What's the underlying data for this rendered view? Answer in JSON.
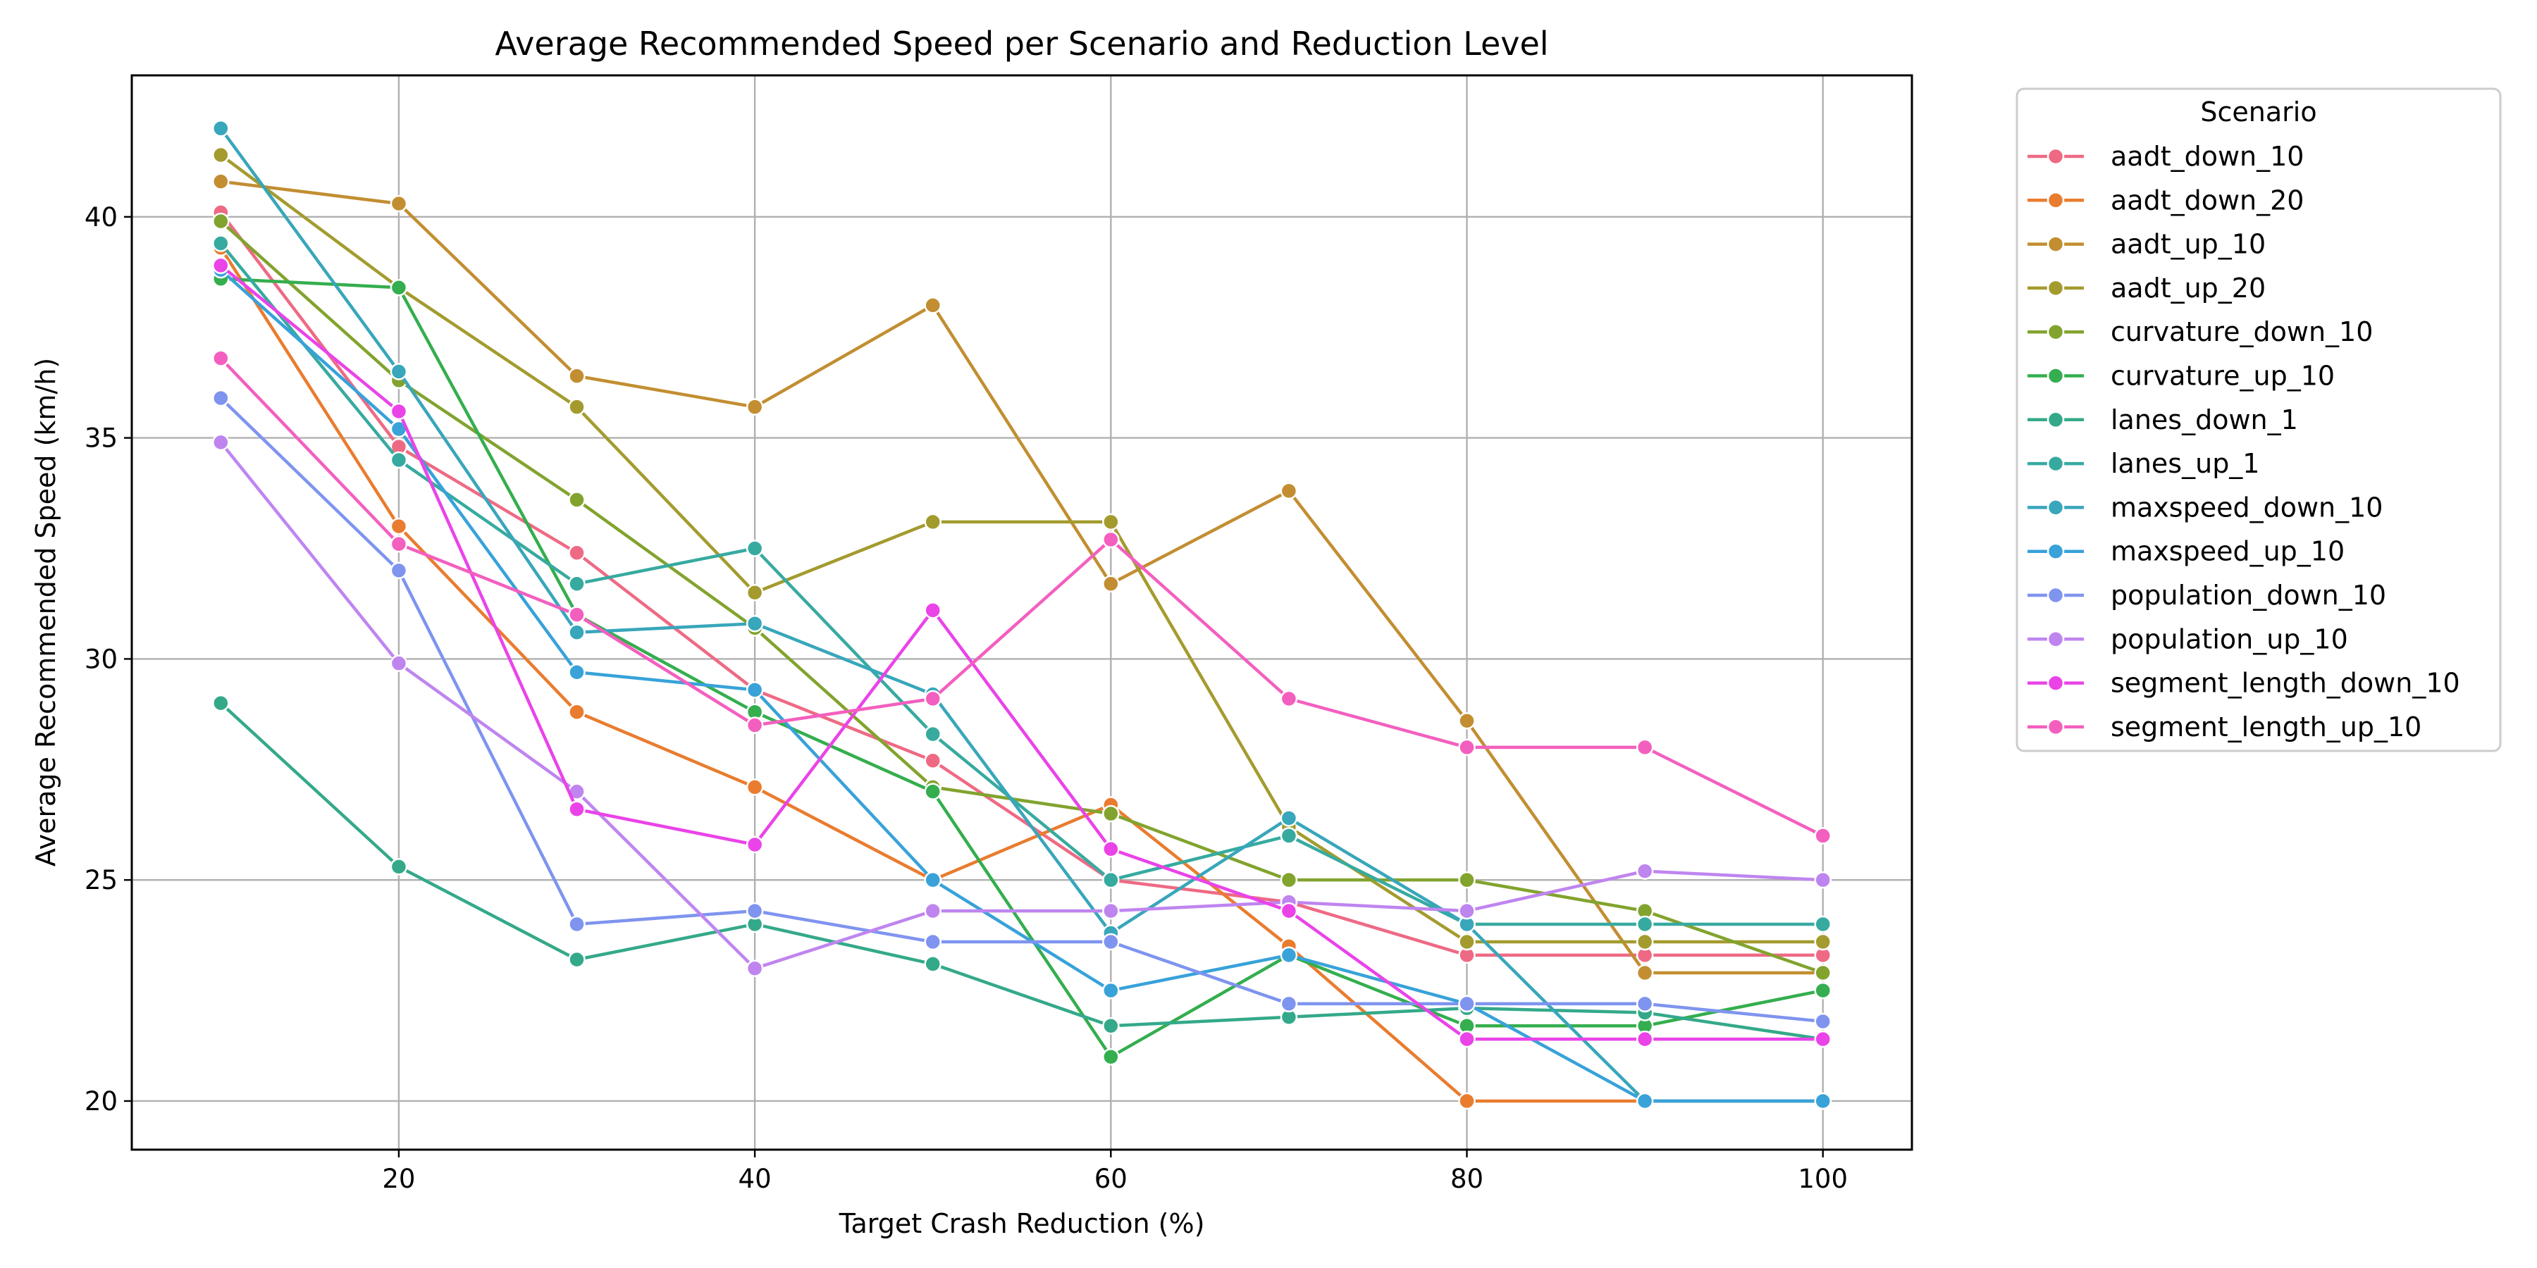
{
  "chart_data": {
    "type": "line",
    "title": "Average Recommended Speed per Scenario and Reduction Level",
    "xlabel": "Target Crash Reduction (%)",
    "ylabel": "Average Recommended Speed (km/h)",
    "xlim": [
      5,
      105
    ],
    "ylim": [
      18.9,
      43.2
    ],
    "xticks": [
      20,
      40,
      60,
      80,
      100
    ],
    "yticks": [
      20,
      25,
      30,
      35,
      40
    ],
    "grid": true,
    "legend_title": "Scenario",
    "legend_position": "outside-right-top",
    "x": [
      10,
      20,
      30,
      40,
      50,
      60,
      70,
      80,
      90,
      100
    ],
    "series": [
      {
        "name": "aadt_down_10",
        "color": "#ee6a84",
        "values": [
          40.1,
          34.8,
          32.4,
          29.3,
          27.7,
          25.0,
          24.5,
          23.3,
          23.3,
          23.3
        ]
      },
      {
        "name": "aadt_down_20",
        "color": "#e97c2f",
        "values": [
          39.3,
          33.0,
          28.8,
          27.1,
          25.0,
          26.7,
          23.5,
          20.0,
          20.0,
          20.0
        ]
      },
      {
        "name": "aadt_up_10",
        "color": "#c28e31",
        "values": [
          40.8,
          40.3,
          36.4,
          35.7,
          38.0,
          31.7,
          33.8,
          28.6,
          22.9,
          22.9
        ]
      },
      {
        "name": "aadt_up_20",
        "color": "#a39b2e",
        "values": [
          41.4,
          38.4,
          35.7,
          31.5,
          33.1,
          33.1,
          26.2,
          23.6,
          23.6,
          23.6
        ]
      },
      {
        "name": "curvature_down_10",
        "color": "#82a32e",
        "values": [
          39.9,
          36.3,
          33.6,
          30.7,
          27.1,
          26.5,
          25.0,
          25.0,
          24.3,
          22.9
        ]
      },
      {
        "name": "curvature_up_10",
        "color": "#34ae4e",
        "values": [
          38.6,
          38.4,
          31.0,
          28.8,
          27.0,
          21.0,
          23.3,
          21.7,
          21.7,
          22.5
        ]
      },
      {
        "name": "lanes_down_1",
        "color": "#34a98a",
        "values": [
          29.0,
          25.3,
          23.2,
          24.0,
          23.1,
          21.7,
          21.9,
          22.1,
          22.0,
          21.4
        ]
      },
      {
        "name": "lanes_up_1",
        "color": "#37aaa0",
        "values": [
          39.4,
          34.5,
          31.7,
          32.5,
          28.3,
          25.0,
          26.0,
          24.0,
          24.0,
          24.0
        ]
      },
      {
        "name": "maxspeed_down_10",
        "color": "#38a6bb",
        "values": [
          42.0,
          36.5,
          30.6,
          30.8,
          29.2,
          23.8,
          26.4,
          24.0,
          20.0,
          20.0
        ]
      },
      {
        "name": "maxspeed_up_10",
        "color": "#38a2d9",
        "values": [
          38.8,
          35.2,
          29.7,
          29.3,
          25.0,
          22.5,
          23.3,
          22.2,
          20.0,
          20.0
        ]
      },
      {
        "name": "population_down_10",
        "color": "#7f94ef",
        "values": [
          35.9,
          32.0,
          24.0,
          24.3,
          23.6,
          23.6,
          22.2,
          22.2,
          22.2,
          21.8
        ]
      },
      {
        "name": "population_up_10",
        "color": "#bf85ef",
        "values": [
          34.9,
          29.9,
          27.0,
          23.0,
          24.3,
          24.3,
          24.5,
          24.3,
          25.2,
          25.0
        ]
      },
      {
        "name": "segment_length_down_10",
        "color": "#ea43e8",
        "values": [
          38.9,
          35.6,
          26.6,
          25.8,
          31.1,
          25.7,
          24.3,
          21.4,
          21.4,
          21.4
        ]
      },
      {
        "name": "segment_length_up_10",
        "color": "#f35fbf",
        "values": [
          36.8,
          32.6,
          31.0,
          28.5,
          29.1,
          32.7,
          29.1,
          28.0,
          28.0,
          26.0
        ]
      }
    ]
  }
}
